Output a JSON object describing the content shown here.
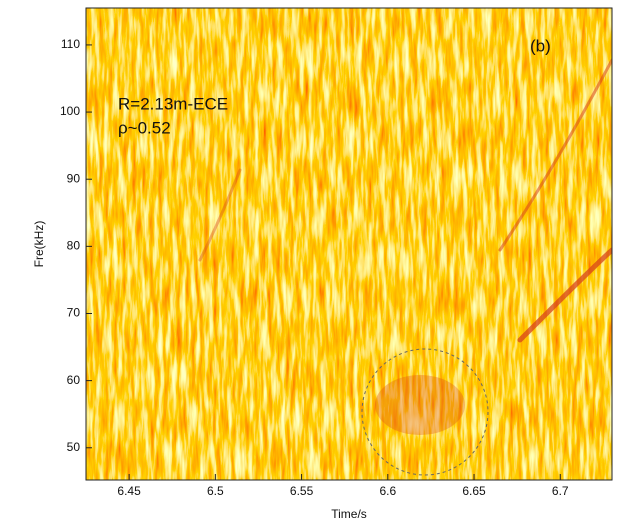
{
  "chart_data": {
    "type": "spectrogram",
    "x_label": "Time/s",
    "y_label": "Fre(kHz)",
    "annotations": [
      "(b)",
      "R=2.13m-ECE",
      "ρ~0.52"
    ],
    "xlim": [
      6.425,
      6.73
    ],
    "xticks": [
      6.45,
      6.5,
      6.55,
      6.6,
      6.65,
      6.7
    ],
    "ylim": [
      45.2,
      115.5
    ],
    "yticks": [
      50,
      60,
      70,
      80,
      90,
      100,
      110
    ]
  }
}
